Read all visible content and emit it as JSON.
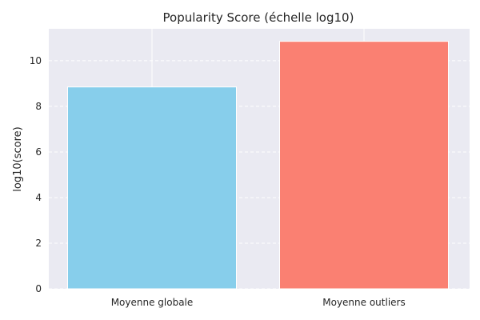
{
  "chart_data": {
    "type": "bar",
    "title": "Popularity Score (échelle log10)",
    "xlabel": "",
    "ylabel": "log10(score)",
    "categories": [
      "Moyenne globale",
      "Moyenne outliers"
    ],
    "values": [
      8.85,
      10.85
    ],
    "colors": [
      "#87CEEB",
      "#FA8072"
    ],
    "ylim": [
      0,
      11.4
    ],
    "yticks": [
      0,
      2,
      4,
      6,
      8,
      10
    ],
    "grid": true,
    "legend": "none"
  }
}
